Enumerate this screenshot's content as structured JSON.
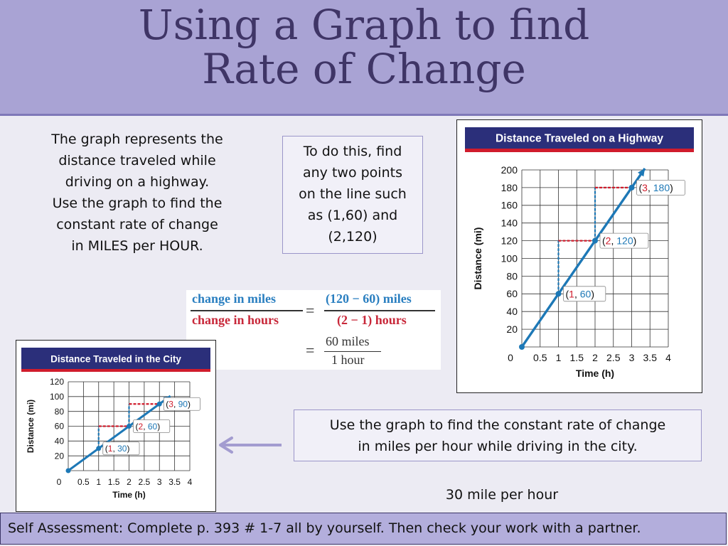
{
  "slide": {
    "title_line1": "Using a Graph to find",
    "title_line2": "Rate of Change",
    "intro_lines": [
      "The graph represents the",
      "distance traveled while",
      "driving on a highway.",
      "Use the graph to find the",
      "constant rate of change",
      "in MILES per HOUR."
    ],
    "hint_lines": [
      "To do this, find",
      "any two points",
      "on the line such",
      "as (1,60) and",
      "(2,120)"
    ],
    "city_task_lines": [
      "Use the graph to find the constant rate of change",
      "in miles per hour while driving in the city."
    ],
    "city_answer": "30 mile per hour",
    "self_assessment": "Self Assessment: Complete p. 393 # 1-7 all by yourself.  Then check your work with a partner.",
    "formula": {
      "num_left": "change in miles",
      "den_left": "change in hours",
      "equals": "=",
      "num_right": "(120 − 60) miles",
      "den_right": "(2 − 1) hours",
      "num_result": "60 miles",
      "den_result": "1 hour"
    },
    "arrow_icon": "left-arrow-icon",
    "colors": {
      "title_band": "#a9a3d4",
      "title_text": "#3f3566",
      "graph_header": "#2b2f7a",
      "graph_accent": "#d01c2c",
      "line": "#1d78b6",
      "dashed_red": "#d01c2c",
      "dashed_blue": "#1d78b6",
      "formula_blue": "#2a7fc0",
      "formula_red": "#c8283a"
    }
  },
  "chart_data": [
    {
      "type": "line",
      "title": "Distance Traveled on a Highway",
      "xlabel": "Time (h)",
      "ylabel": "Distance (mi)",
      "xlim": [
        0,
        4
      ],
      "ylim": [
        0,
        200
      ],
      "x_ticks": [
        "0",
        "0.5",
        "1",
        "1.5",
        "2",
        "2.5",
        "3",
        "3.5",
        "4"
      ],
      "y_ticks": [
        "20",
        "40",
        "60",
        "80",
        "100",
        "120",
        "140",
        "160",
        "180",
        "200"
      ],
      "grid": true,
      "series": [
        {
          "x": [
            0,
            1,
            2,
            3
          ],
          "y": [
            0,
            60,
            120,
            180
          ]
        }
      ],
      "labeled_points": [
        {
          "x": "1",
          "y": "60"
        },
        {
          "x": "2",
          "y": "120"
        },
        {
          "x": "3",
          "y": "180"
        }
      ]
    },
    {
      "type": "line",
      "title": "Distance Traveled in the City",
      "xlabel": "Time (h)",
      "ylabel": "Distance (mi)",
      "xlim": [
        0,
        4
      ],
      "ylim": [
        0,
        120
      ],
      "x_ticks": [
        "0",
        "0.5",
        "1",
        "1.5",
        "2",
        "2.5",
        "3",
        "3.5",
        "4"
      ],
      "y_ticks": [
        "20",
        "40",
        "60",
        "80",
        "100",
        "120"
      ],
      "grid": true,
      "series": [
        {
          "x": [
            0,
            1,
            2,
            3
          ],
          "y": [
            0,
            30,
            60,
            90
          ]
        }
      ],
      "labeled_points": [
        {
          "x": "1",
          "y": "30"
        },
        {
          "x": "2",
          "y": "60"
        },
        {
          "x": "3",
          "y": "90"
        }
      ]
    }
  ]
}
